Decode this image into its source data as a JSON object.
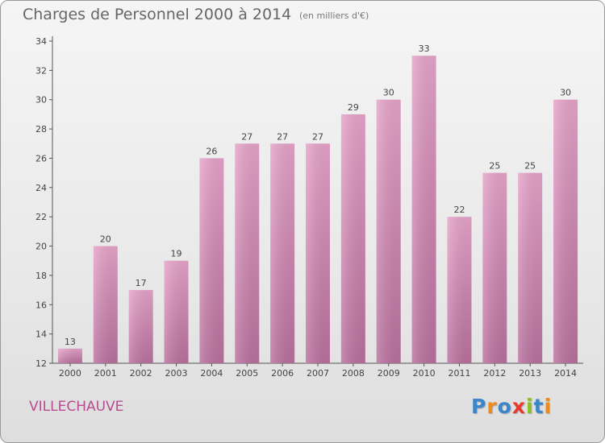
{
  "header": {
    "title": "Charges de Personnel 2000 à 2014",
    "subtitle": "(en milliers d'€)"
  },
  "footer": {
    "commune": "VILLECHAUVE",
    "logo_letters": [
      {
        "ch": "P",
        "color": "#3a86c8"
      },
      {
        "ch": "r",
        "color": "#f08a1c"
      },
      {
        "ch": "o",
        "color": "#3a86c8"
      },
      {
        "ch": "x",
        "color": "#e8392c"
      },
      {
        "ch": "i",
        "color": "#8cbf26"
      },
      {
        "ch": "t",
        "color": "#3a86c8"
      },
      {
        "ch": "i",
        "color": "#f08a1c"
      }
    ]
  },
  "chart_data": {
    "type": "bar",
    "title": "Charges de Personnel 2000 à 2014",
    "subtitle": "(en milliers d'€)",
    "categories": [
      "2000",
      "2001",
      "2002",
      "2003",
      "2004",
      "2005",
      "2006",
      "2007",
      "2008",
      "2009",
      "2010",
      "2011",
      "2012",
      "2013",
      "2014"
    ],
    "values": [
      13,
      20,
      17,
      19,
      26,
      27,
      27,
      27,
      29,
      30,
      33,
      22,
      25,
      25,
      30
    ],
    "xlabel": "",
    "ylabel": "",
    "ylim": [
      12,
      34
    ],
    "yticks": [
      12,
      14,
      16,
      18,
      20,
      22,
      24,
      26,
      28,
      30,
      32,
      34
    ],
    "grid": false,
    "bar_color": "#d98cb8",
    "data_labels": true
  }
}
